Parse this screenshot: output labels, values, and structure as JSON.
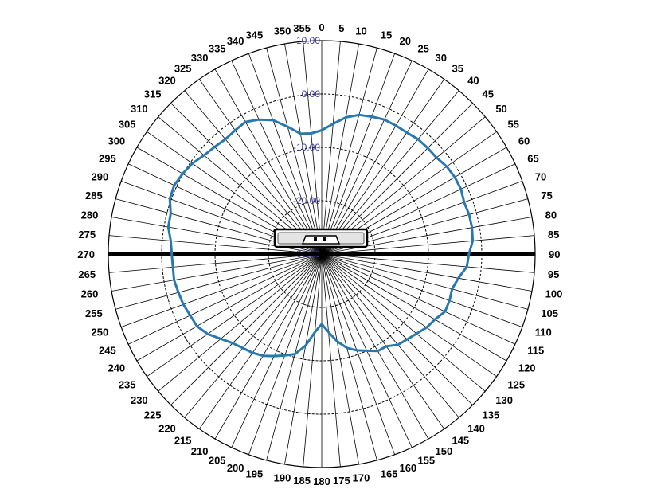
{
  "chart_data": {
    "type": "polar-line",
    "angle_unit": "degrees",
    "angle_zero": "top",
    "angle_direction": "clockwise",
    "angle_ticks": [
      0,
      5,
      10,
      15,
      20,
      25,
      30,
      35,
      40,
      45,
      50,
      55,
      60,
      65,
      70,
      75,
      80,
      85,
      90,
      95,
      100,
      105,
      110,
      115,
      120,
      125,
      130,
      135,
      140,
      145,
      150,
      155,
      160,
      165,
      170,
      175,
      180,
      185,
      190,
      195,
      200,
      205,
      210,
      215,
      220,
      225,
      230,
      235,
      240,
      245,
      250,
      255,
      260,
      265,
      270,
      275,
      280,
      285,
      290,
      295,
      300,
      305,
      310,
      315,
      320,
      325,
      330,
      335,
      340,
      345,
      350,
      355
    ],
    "angle_tick_labels": [
      "0",
      "5",
      "10",
      "15",
      "20",
      "25",
      "30",
      "35",
      "40",
      "45",
      "50",
      "55",
      "60",
      "65",
      "70",
      "75",
      "80",
      "85",
      "90",
      "95",
      "100",
      "105",
      "110",
      "115",
      "120",
      "125",
      "130",
      "135",
      "140",
      "145",
      "150",
      "155",
      "160",
      "165",
      "170",
      "175",
      "180",
      "185",
      "190",
      "195",
      "200",
      "205",
      "210",
      "215",
      "220",
      "225",
      "230",
      "235",
      "240",
      "245",
      "250",
      "255",
      "260",
      "265",
      "270",
      "275",
      "280",
      "285",
      "290",
      "295",
      "300",
      "305",
      "310",
      "315",
      "320",
      "325",
      "330",
      "335",
      "340",
      "345",
      "350",
      "355"
    ],
    "radial_range": [
      -30,
      10
    ],
    "radial_ticks": [
      10,
      0,
      -10,
      -20,
      -30
    ],
    "radial_tick_labels": [
      "10.00",
      "0.00",
      "-10.00",
      "-20.00",
      "-30.00"
    ],
    "grid": true,
    "colors": {
      "series": "#2878b0",
      "baseline": "#000000",
      "ring_labels": "#3a3aa0"
    },
    "baseline_angles": [
      90,
      270
    ],
    "icon": "product-outline-icon",
    "series": [
      {
        "angles": [
          0,
          5,
          10,
          15,
          20,
          25,
          30,
          35,
          40,
          45,
          50,
          55,
          60,
          65,
          70,
          75,
          80,
          85,
          90,
          95,
          100,
          105,
          110,
          115,
          120,
          125,
          130,
          135,
          140,
          145,
          150,
          155,
          160,
          165,
          170,
          175,
          180,
          185,
          190,
          195,
          200,
          205,
          210,
          215,
          220,
          225,
          230,
          235,
          240,
          245,
          250,
          255,
          260,
          265,
          270,
          275,
          280,
          285,
          290,
          295,
          300,
          305,
          310,
          315,
          320,
          325,
          330,
          335,
          340,
          345,
          350,
          355
        ],
        "values": [
          -6.8,
          -5.5,
          -4.0,
          -3.0,
          -2.6,
          -2.2,
          -2.2,
          -2.2,
          -1.9,
          -1.9,
          -1.9,
          -1.4,
          -1.2,
          -1.2,
          -1.6,
          -1.4,
          -1.4,
          -1.6,
          -2.4,
          -2.7,
          -4.0,
          -4.7,
          -4.5,
          -4.5,
          -5.5,
          -6.0,
          -6.8,
          -7.4,
          -7.8,
          -8.9,
          -9.0,
          -10.0,
          -10.8,
          -11.8,
          -13.4,
          -15.3,
          -16.9,
          -15.3,
          -12.6,
          -10.6,
          -9.8,
          -8.9,
          -8.0,
          -7.4,
          -7.0,
          -6.4,
          -5.3,
          -3.9,
          -3.0,
          -2.8,
          -2.4,
          -2.2,
          -1.9,
          -2.0,
          -1.9,
          -1.6,
          -0.8,
          -0.7,
          0.3,
          0.5,
          0.1,
          -0.4,
          -1.2,
          -1.6,
          -1.9,
          -1.7,
          -1.4,
          -2.2,
          -3.3,
          -5.3,
          -7.1,
          -7.3
        ]
      }
    ]
  }
}
